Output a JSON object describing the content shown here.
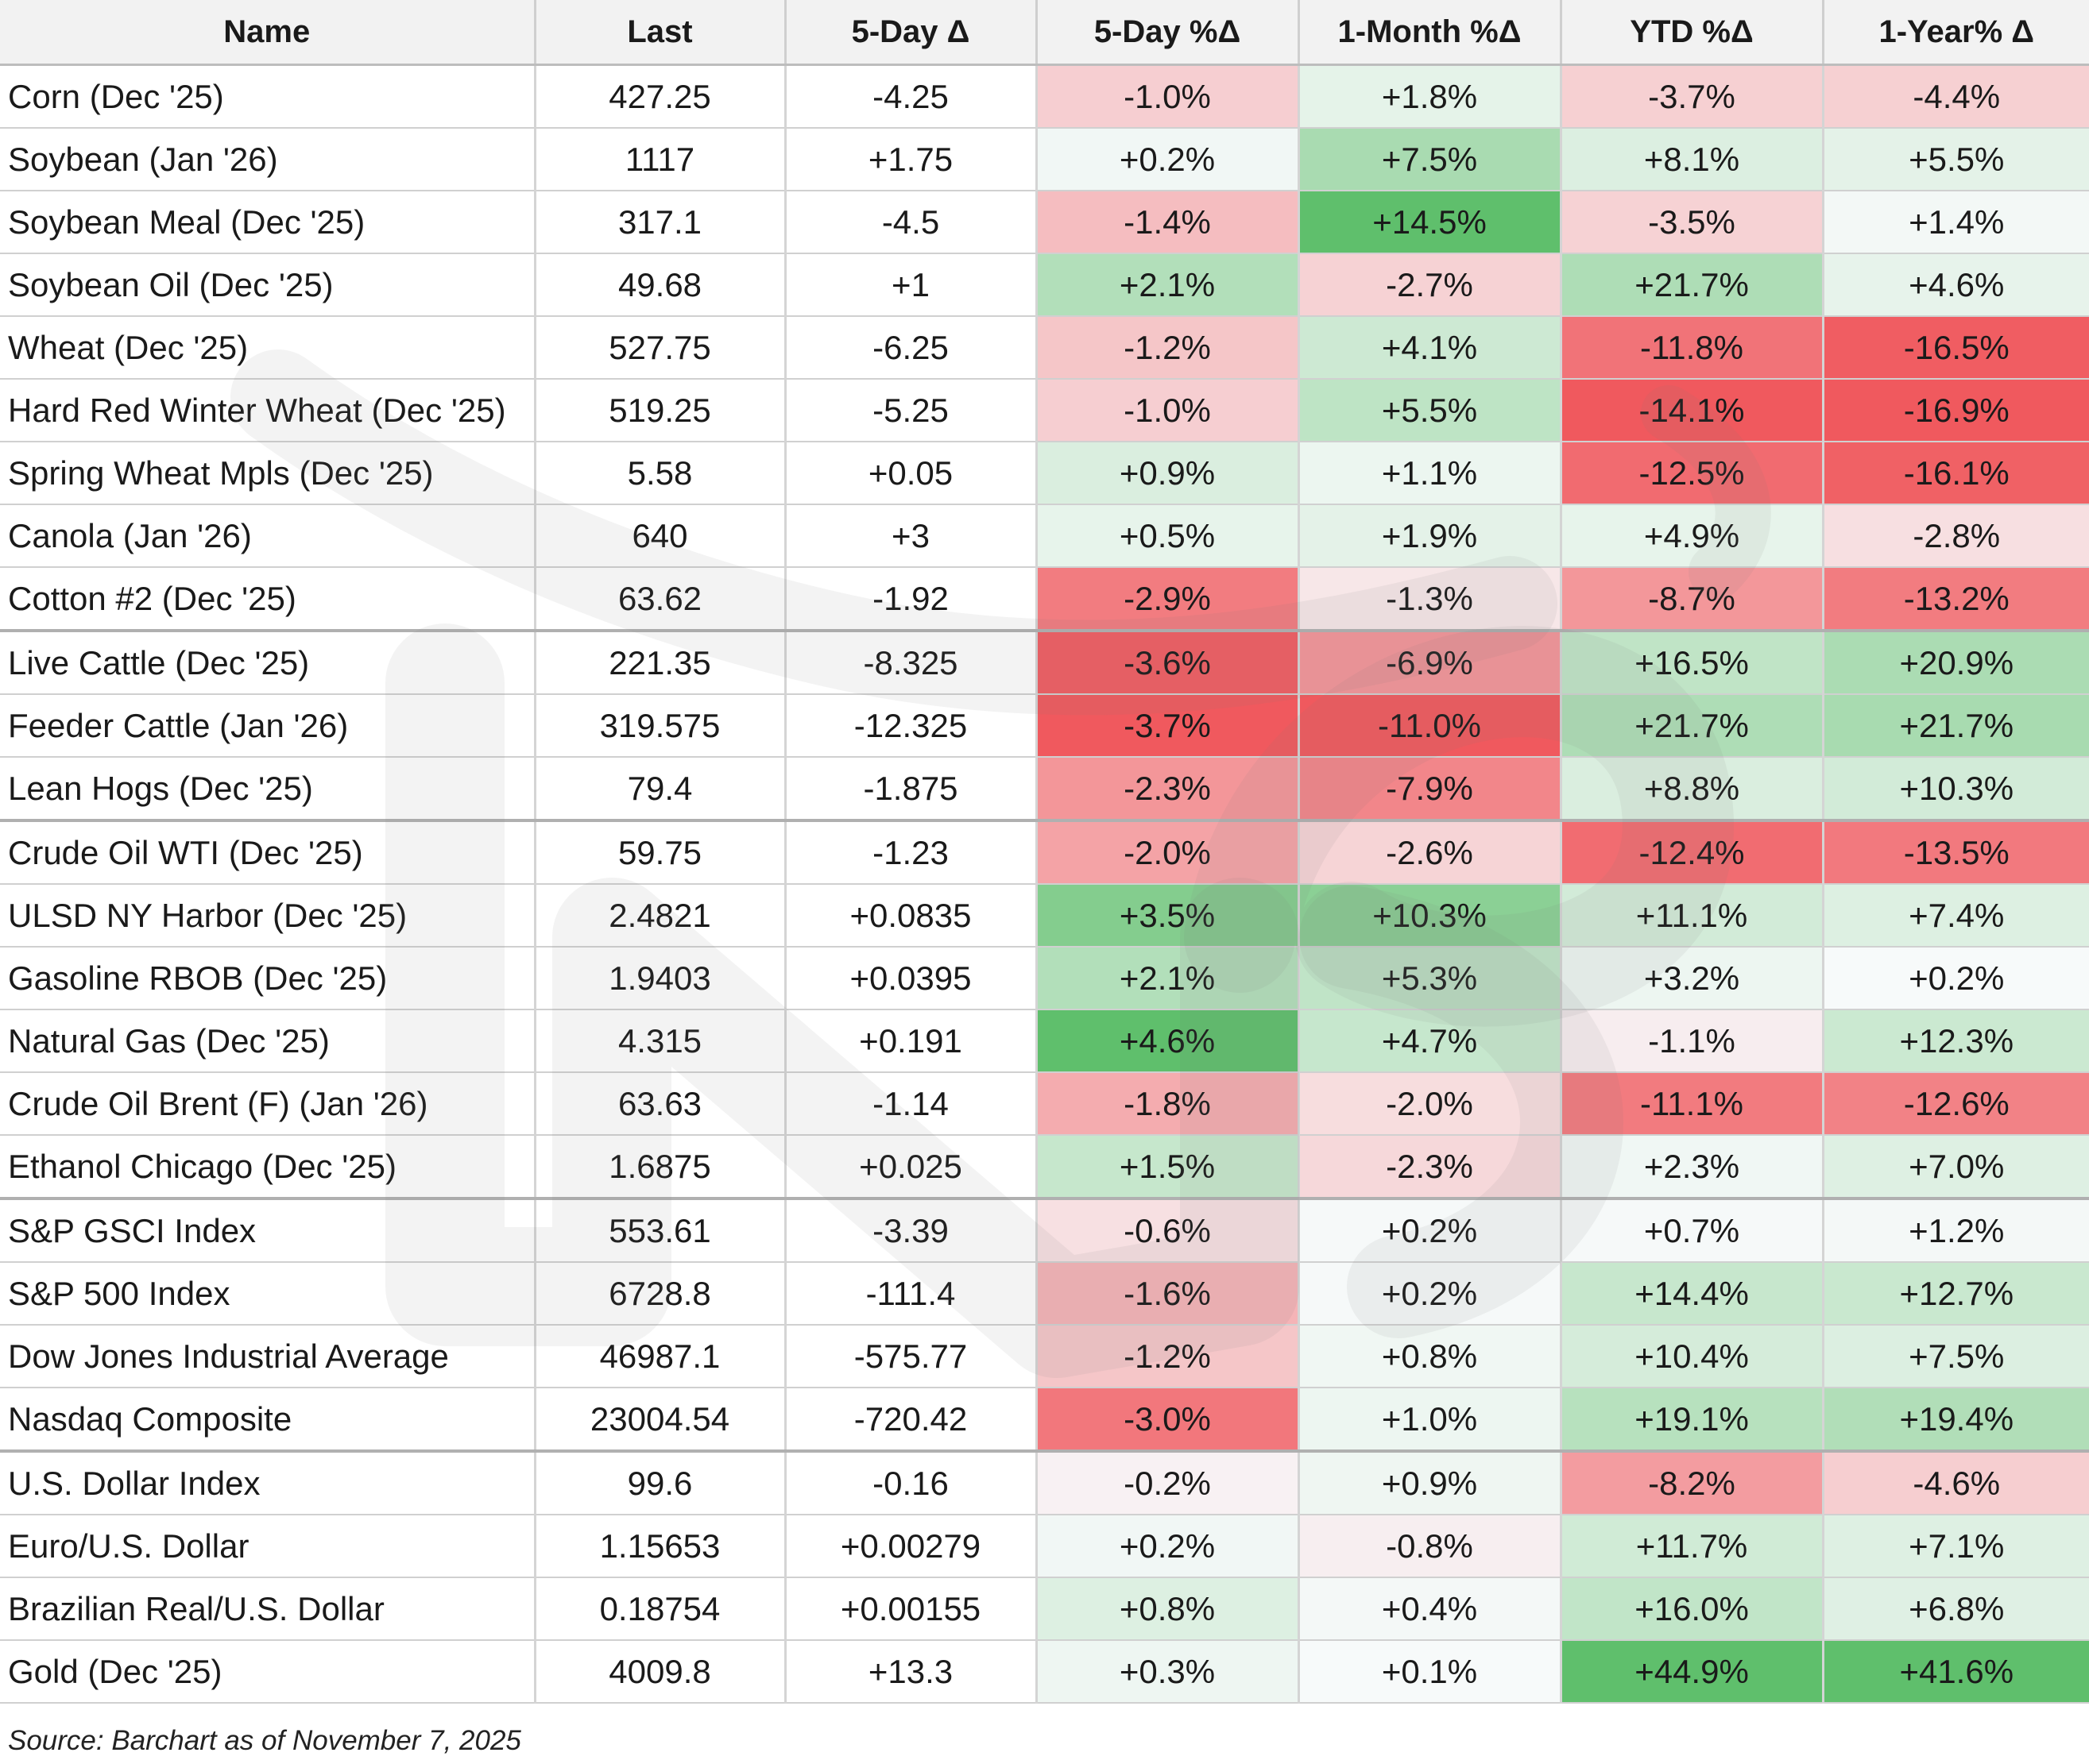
{
  "chart_data": {
    "type": "table",
    "columns": [
      "Name",
      "Last",
      "5-Day Δ",
      "5-Day %Δ",
      "1-Month %Δ",
      "YTD %Δ",
      "1-Year% Δ"
    ],
    "rows": [
      {
        "name": "Corn (Dec '25)",
        "last": "427.25",
        "d5": "-4.25",
        "p5": -1.0,
        "m1": 1.8,
        "ytd": -3.7,
        "y1": -4.4
      },
      {
        "name": "Soybean (Jan '26)",
        "last": "1117",
        "d5": "+1.75",
        "p5": 0.2,
        "m1": 7.5,
        "ytd": 8.1,
        "y1": 5.5
      },
      {
        "name": "Soybean Meal (Dec '25)",
        "last": "317.1",
        "d5": "-4.5",
        "p5": -1.4,
        "m1": 14.5,
        "ytd": -3.5,
        "y1": 1.4
      },
      {
        "name": "Soybean Oil (Dec '25)",
        "last": "49.68",
        "d5": "+1",
        "p5": 2.1,
        "m1": -2.7,
        "ytd": 21.7,
        "y1": 4.6
      },
      {
        "name": "Wheat (Dec '25)",
        "last": "527.75",
        "d5": "-6.25",
        "p5": -1.2,
        "m1": 4.1,
        "ytd": -11.8,
        "y1": -16.5
      },
      {
        "name": "Hard Red Winter Wheat (Dec '25)",
        "last": "519.25",
        "d5": "-5.25",
        "p5": -1.0,
        "m1": 5.5,
        "ytd": -14.1,
        "y1": -16.9
      },
      {
        "name": "Spring Wheat Mpls (Dec '25)",
        "last": "5.58",
        "d5": "+0.05",
        "p5": 0.9,
        "m1": 1.1,
        "ytd": -12.5,
        "y1": -16.1
      },
      {
        "name": "Canola (Jan '26)",
        "last": "640",
        "d5": "+3",
        "p5": 0.5,
        "m1": 1.9,
        "ytd": 4.9,
        "y1": -2.8
      },
      {
        "name": "Cotton #2 (Dec '25)",
        "last": "63.62",
        "d5": "-1.92",
        "p5": -2.9,
        "m1": -1.3,
        "ytd": -8.7,
        "y1": -13.2,
        "group_end": true
      },
      {
        "name": "Live Cattle (Dec '25)",
        "last": "221.35",
        "d5": "-8.325",
        "p5": -3.6,
        "m1": -6.9,
        "ytd": 16.5,
        "y1": 20.9
      },
      {
        "name": "Feeder Cattle (Jan '26)",
        "last": "319.575",
        "d5": "-12.325",
        "p5": -3.7,
        "m1": -11.0,
        "ytd": 21.7,
        "y1": 21.7
      },
      {
        "name": "Lean Hogs (Dec '25)",
        "last": "79.4",
        "d5": "-1.875",
        "p5": -2.3,
        "m1": -7.9,
        "ytd": 8.8,
        "y1": 10.3,
        "group_end": true
      },
      {
        "name": "Crude Oil WTI (Dec '25)",
        "last": "59.75",
        "d5": "-1.23",
        "p5": -2.0,
        "m1": -2.6,
        "ytd": -12.4,
        "y1": -13.5
      },
      {
        "name": "ULSD NY Harbor (Dec '25)",
        "last": "2.4821",
        "d5": "+0.0835",
        "p5": 3.5,
        "m1": 10.3,
        "ytd": 11.1,
        "y1": 7.4
      },
      {
        "name": "Gasoline RBOB (Dec '25)",
        "last": "1.9403",
        "d5": "+0.0395",
        "p5": 2.1,
        "m1": 5.3,
        "ytd": 3.2,
        "y1": 0.2
      },
      {
        "name": "Natural Gas (Dec '25)",
        "last": "4.315",
        "d5": "+0.191",
        "p5": 4.6,
        "m1": 4.7,
        "ytd": -1.1,
        "y1": 12.3
      },
      {
        "name": "Crude Oil Brent (F) (Jan '26)",
        "last": "63.63",
        "d5": "-1.14",
        "p5": -1.8,
        "m1": -2.0,
        "ytd": -11.1,
        "y1": -12.6
      },
      {
        "name": "Ethanol Chicago (Dec '25)",
        "last": "1.6875",
        "d5": "+0.025",
        "p5": 1.5,
        "m1": -2.3,
        "ytd": 2.3,
        "y1": 7.0,
        "group_end": true
      },
      {
        "name": "S&P GSCI Index",
        "last": "553.61",
        "d5": "-3.39",
        "p5": -0.6,
        "m1": 0.2,
        "ytd": 0.7,
        "y1": 1.2
      },
      {
        "name": "S&P 500 Index",
        "last": "6728.8",
        "d5": "-111.4",
        "p5": -1.6,
        "m1": 0.2,
        "ytd": 14.4,
        "y1": 12.7
      },
      {
        "name": "Dow Jones Industrial Average",
        "last": "46987.1",
        "d5": "-575.77",
        "p5": -1.2,
        "m1": 0.8,
        "ytd": 10.4,
        "y1": 7.5
      },
      {
        "name": "Nasdaq Composite",
        "last": "23004.54",
        "d5": "-720.42",
        "p5": -3.0,
        "m1": 1.0,
        "ytd": 19.1,
        "y1": 19.4,
        "group_end": true
      },
      {
        "name": "U.S. Dollar Index",
        "last": "99.6",
        "d5": "-0.16",
        "p5": -0.2,
        "m1": 0.9,
        "ytd": -8.2,
        "y1": -4.6
      },
      {
        "name": "Euro/U.S. Dollar",
        "last": "1.15653",
        "d5": "+0.00279",
        "p5": 0.2,
        "m1": -0.8,
        "ytd": 11.7,
        "y1": 7.1
      },
      {
        "name": "Brazilian Real/U.S. Dollar",
        "last": "0.18754",
        "d5": "+0.00155",
        "p5": 0.8,
        "m1": 0.4,
        "ytd": 16.0,
        "y1": 6.8
      },
      {
        "name": "Gold (Dec '25)",
        "last": "4009.8",
        "d5": "+13.3",
        "p5": 0.3,
        "m1": 0.1,
        "ytd": 44.9,
        "y1": 41.6
      }
    ]
  },
  "source_note": "Source: Barchart as of November 7, 2025",
  "colors": {
    "positive": "#5fbf6c",
    "negative": "#f0595e",
    "neutral": "#f8fafb",
    "header_bg": "#f2f2f2"
  },
  "watermark_icon": "nb-logo-icon"
}
